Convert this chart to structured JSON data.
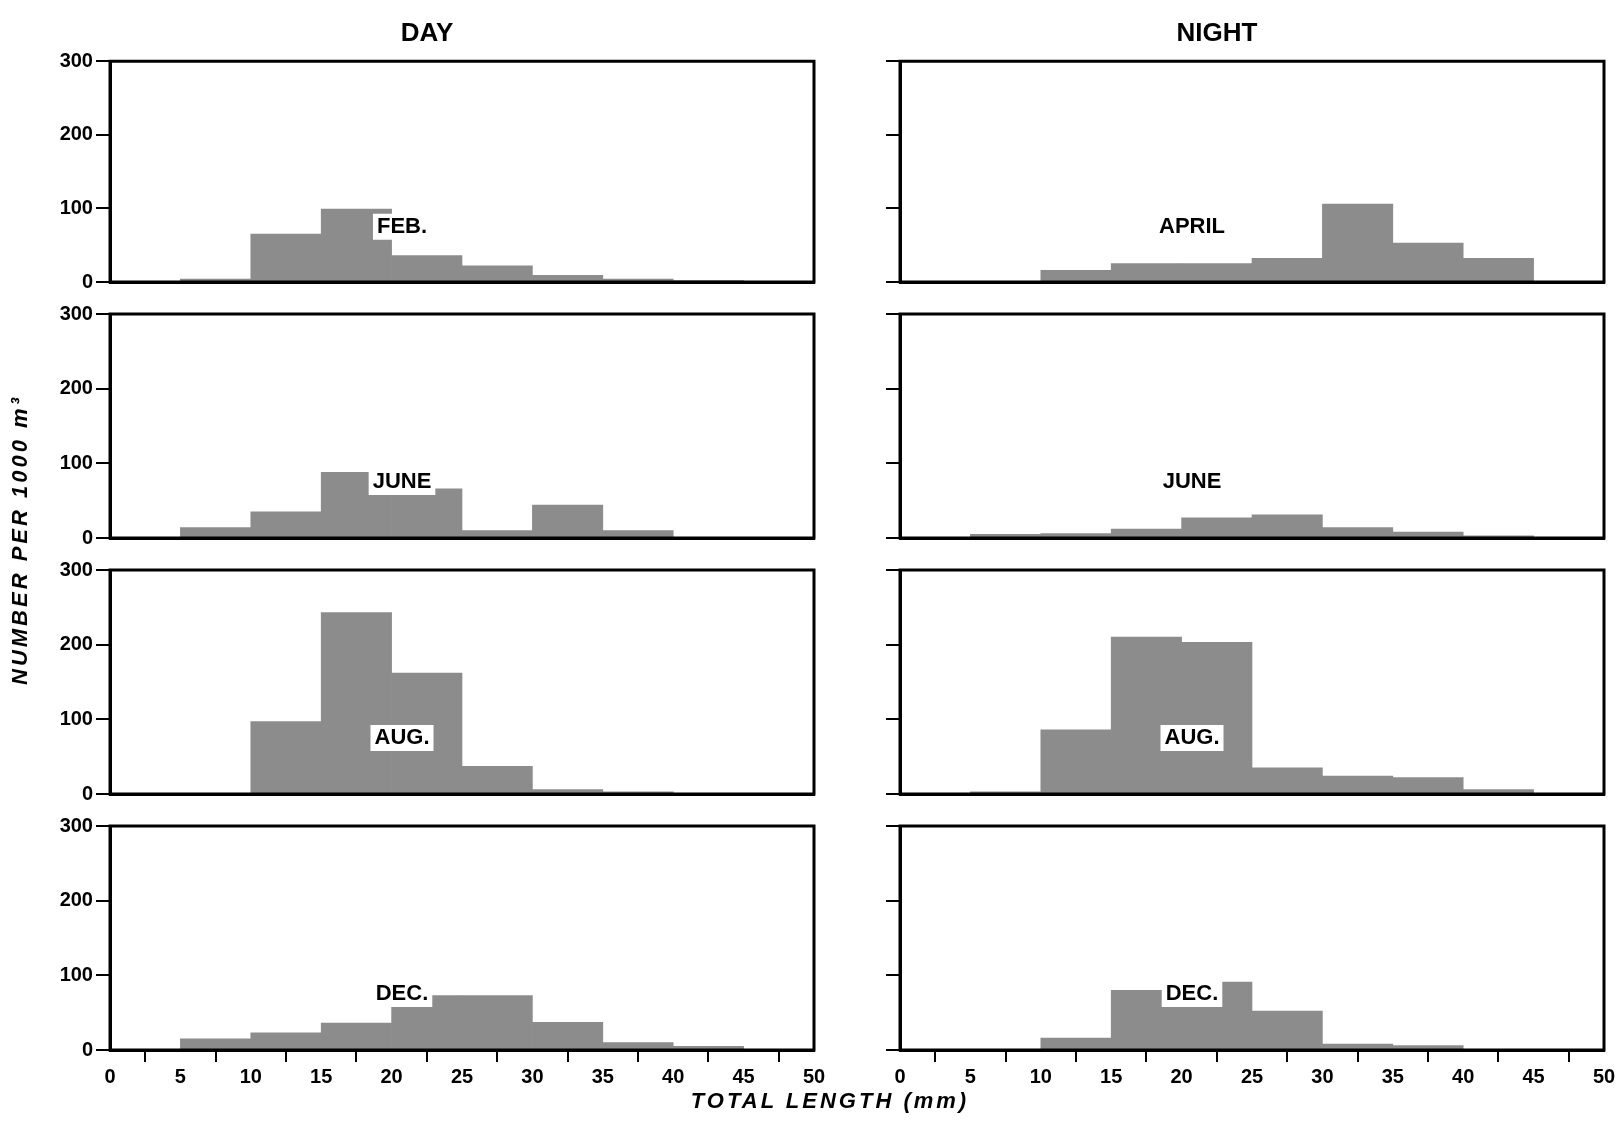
{
  "chart_data": [
    {
      "type": "histogram",
      "title": "DAY",
      "ylabel": "NUMBER PER 1000 m³",
      "annotations": [
        "FEB."
      ],
      "bins": [
        5,
        10,
        15,
        20,
        25,
        30,
        35,
        40,
        45
      ],
      "values": [
        4,
        65,
        99,
        36,
        22,
        9,
        4,
        2
      ],
      "color": "#8c8c8c",
      "xlim": [
        0,
        50
      ],
      "xticks": [
        0,
        5,
        10,
        15,
        20,
        25,
        30,
        35,
        40,
        45,
        50
      ],
      "ylim": [
        0,
        300
      ],
      "yticks": [
        0,
        100,
        200,
        300
      ],
      "tick_labels": "y"
    },
    {
      "type": "histogram",
      "title": "NIGHT",
      "annotations": [
        "APRIL"
      ],
      "bins": [
        5,
        10,
        15,
        20,
        25,
        30,
        35,
        40,
        45
      ],
      "values": [
        0,
        16,
        25,
        25,
        32,
        106,
        53,
        32
      ],
      "color": "#8c8c8c",
      "xlim": [
        0,
        50
      ],
      "xticks": [
        0,
        5,
        10,
        15,
        20,
        25,
        30,
        35,
        40,
        45,
        50
      ],
      "ylim": [
        0,
        300
      ],
      "yticks": [
        0,
        100,
        200,
        300
      ],
      "tick_labels": false
    },
    {
      "type": "histogram",
      "annotations": [
        "JUNE"
      ],
      "bins": [
        5,
        10,
        15,
        20,
        25,
        30,
        35,
        40,
        45
      ],
      "values": [
        14,
        35,
        88,
        66,
        10,
        44,
        10,
        0
      ],
      "color": "#8c8c8c",
      "xlim": [
        0,
        50
      ],
      "xticks": [
        0,
        5,
        10,
        15,
        20,
        25,
        30,
        35,
        40,
        45,
        50
      ],
      "ylim": [
        0,
        300
      ],
      "yticks": [
        0,
        100,
        200,
        300
      ],
      "tick_labels": "y"
    },
    {
      "type": "histogram",
      "annotations": [
        "JUNE"
      ],
      "bins": [
        5,
        10,
        15,
        20,
        25,
        30,
        35,
        40,
        45
      ],
      "values": [
        5,
        6,
        12,
        27,
        31,
        14,
        8,
        3
      ],
      "color": "#8c8c8c",
      "xlim": [
        0,
        50
      ],
      "xticks": [
        0,
        5,
        10,
        15,
        20,
        25,
        30,
        35,
        40,
        45,
        50
      ],
      "ylim": [
        0,
        300
      ],
      "yticks": [
        0,
        100,
        200,
        300
      ],
      "tick_labels": false
    },
    {
      "type": "histogram",
      "annotations": [
        "AUG."
      ],
      "bins": [
        5,
        10,
        15,
        20,
        25,
        30,
        35,
        40,
        45
      ],
      "values": [
        0,
        97,
        243,
        162,
        37,
        6,
        3,
        0
      ],
      "color": "#8c8c8c",
      "xlim": [
        0,
        50
      ],
      "xticks": [
        0,
        5,
        10,
        15,
        20,
        25,
        30,
        35,
        40,
        45,
        50
      ],
      "ylim": [
        0,
        300
      ],
      "yticks": [
        0,
        100,
        200,
        300
      ],
      "tick_labels": "y"
    },
    {
      "type": "histogram",
      "annotations": [
        "AUG."
      ],
      "bins": [
        5,
        10,
        15,
        20,
        25,
        30,
        35,
        40,
        45
      ],
      "values": [
        3,
        86,
        210,
        203,
        35,
        24,
        22,
        6
      ],
      "color": "#8c8c8c",
      "xlim": [
        0,
        50
      ],
      "xticks": [
        0,
        5,
        10,
        15,
        20,
        25,
        30,
        35,
        40,
        45,
        50
      ],
      "ylim": [
        0,
        300
      ],
      "yticks": [
        0,
        100,
        200,
        300
      ],
      "tick_labels": false
    },
    {
      "type": "histogram",
      "xlabel": "TOTAL LENGTH (mm)",
      "annotations": [
        "DEC."
      ],
      "bins": [
        5,
        10,
        15,
        20,
        25,
        30,
        35,
        40,
        45
      ],
      "values": [
        15,
        23,
        36,
        73,
        73,
        37,
        10,
        5
      ],
      "color": "#8c8c8c",
      "xlim": [
        0,
        50
      ],
      "xticks": [
        0,
        5,
        10,
        15,
        20,
        25,
        30,
        35,
        40,
        45,
        50
      ],
      "ylim": [
        0,
        300
      ],
      "yticks": [
        0,
        100,
        200,
        300
      ]
    },
    {
      "type": "histogram",
      "annotations": [
        "DEC."
      ],
      "bins": [
        5,
        10,
        15,
        20,
        25,
        30,
        35,
        40,
        45
      ],
      "values": [
        0,
        16,
        80,
        91,
        52,
        8,
        6,
        0
      ],
      "color": "#8c8c8c",
      "xlim": [
        0,
        50
      ],
      "xticks": [
        0,
        5,
        10,
        15,
        20,
        25,
        30,
        35,
        40,
        45,
        50
      ],
      "ylim": [
        0,
        300
      ],
      "yticks": [
        0,
        100,
        200,
        300
      ],
      "tick_labels": "x"
    }
  ]
}
